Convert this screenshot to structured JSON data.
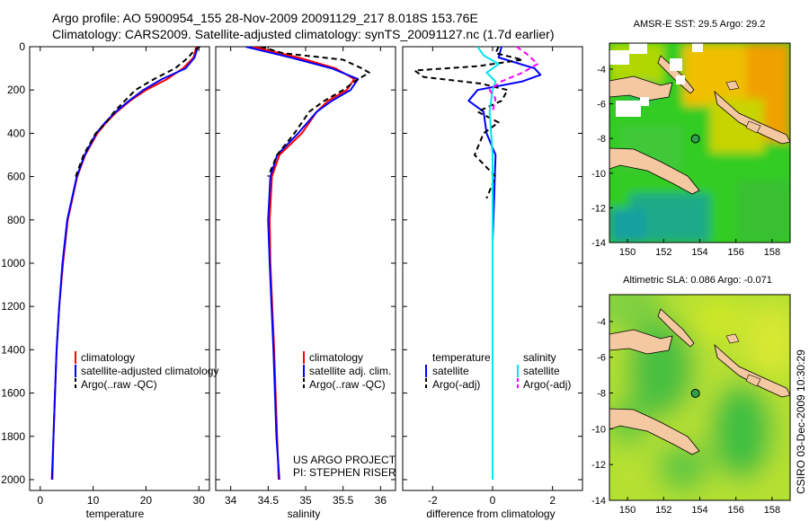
{
  "title": {
    "line1": "Argo profile: AO 5900954_155 28-Nov-2009 20091129_217 8.018S 153.76E",
    "line2": "Climatology: CARS2009. Satellite-adjusted climatology: synTS_20091127.nc (1.7d earlier)"
  },
  "credit": {
    "project": "US ARGO PROJECT",
    "pi": "PI: STEPHEN RISER",
    "stamp": "CSIRO 03-Dec-2009 10:30:29"
  },
  "colors": {
    "clim": "#ff0000",
    "sat": "#0000ff",
    "argo": "#000000",
    "sal_sat": "#00e5ee",
    "sal_argo": "#ff00ff",
    "land": "#f4c8a0"
  },
  "chart_data": [
    {
      "id": "temperature",
      "type": "line",
      "xlabel": "temperature",
      "xlim": [
        -2,
        32
      ],
      "ylim": [
        2050,
        0
      ],
      "xticks": [
        0,
        10,
        20,
        30
      ],
      "yticks": [
        0,
        200,
        400,
        600,
        800,
        1000,
        1200,
        1400,
        1600,
        1800,
        2000
      ],
      "legend": [
        "climatology",
        "satellite-adjusted climatology",
        "Argo(..raw -QC)"
      ],
      "series": [
        {
          "name": "climatology",
          "depth": [
            0,
            50,
            100,
            150,
            200,
            250,
            300,
            350,
            400,
            500,
            600,
            800,
            1000,
            1200,
            1400,
            1600,
            1800,
            2000
          ],
          "values": [
            29.5,
            29.0,
            27.0,
            24.0,
            20.0,
            17.0,
            14.5,
            12.5,
            10.8,
            8.5,
            7.0,
            5.2,
            4.3,
            3.6,
            3.1,
            2.8,
            2.5,
            2.3
          ]
        },
        {
          "name": "satellite-adjusted climatology",
          "depth": [
            0,
            50,
            100,
            150,
            200,
            250,
            300,
            350,
            400,
            500,
            600,
            800,
            1000,
            1200,
            1400,
            1600,
            1800,
            2000
          ],
          "values": [
            29.8,
            29.2,
            27.5,
            23.0,
            19.5,
            16.8,
            14.3,
            12.3,
            10.6,
            8.4,
            6.9,
            5.1,
            4.2,
            3.6,
            3.1,
            2.8,
            2.5,
            2.2
          ]
        },
        {
          "name": "Argo(..raw -QC)",
          "depth": [
            0,
            20,
            50,
            100,
            150,
            200,
            250,
            300,
            350,
            400,
            500,
            600
          ],
          "values": [
            30.2,
            29.0,
            28.0,
            25.5,
            21.5,
            18.0,
            16.0,
            14.0,
            12.5,
            10.5,
            8.2,
            6.7
          ]
        }
      ]
    },
    {
      "id": "salinity",
      "type": "line",
      "xlabel": "salinity",
      "xlim": [
        33.8,
        36.2
      ],
      "ylim": [
        2050,
        0
      ],
      "xticks": [
        34,
        34.5,
        35,
        35.5,
        36
      ],
      "yticks": [
        0,
        200,
        400,
        600,
        800,
        1000,
        1200,
        1400,
        1600,
        1800,
        2000
      ],
      "legend": [
        "climatology",
        "satellite adj. clim.",
        "Argo(..raw -QC)"
      ],
      "series": [
        {
          "name": "climatology",
          "depth": [
            0,
            50,
            100,
            150,
            200,
            250,
            300,
            400,
            500,
            600,
            800,
            1000,
            1400,
            1800,
            2000
          ],
          "values": [
            34.3,
            34.9,
            35.4,
            35.65,
            35.55,
            35.3,
            35.15,
            34.95,
            34.65,
            34.55,
            34.52,
            34.53,
            34.58,
            34.62,
            34.64
          ]
        },
        {
          "name": "satellite adj. clim.",
          "depth": [
            0,
            50,
            100,
            150,
            200,
            250,
            300,
            400,
            500,
            600,
            800,
            1000,
            1400,
            1800,
            2000
          ],
          "values": [
            34.2,
            34.8,
            35.35,
            35.7,
            35.6,
            35.35,
            35.15,
            34.9,
            34.62,
            34.53,
            34.5,
            34.52,
            34.57,
            34.61,
            34.65
          ]
        },
        {
          "name": "Argo(..raw -QC)",
          "depth": [
            0,
            30,
            60,
            100,
            120,
            150,
            200,
            250,
            300,
            400,
            500,
            600
          ],
          "values": [
            34.4,
            34.7,
            35.5,
            35.75,
            35.85,
            35.7,
            35.5,
            35.25,
            35.05,
            34.85,
            34.62,
            34.5
          ]
        }
      ]
    },
    {
      "id": "difference",
      "type": "line",
      "xlabel": "difference from climatology",
      "xlim": [
        -3,
        3
      ],
      "ylim": [
        2050,
        0
      ],
      "xticks": [
        -2,
        0,
        2
      ],
      "yticks": [
        0,
        200,
        400,
        600,
        800,
        1000,
        1200,
        1400,
        1600,
        1800,
        2000
      ],
      "legend": [
        "temperature",
        "satellite",
        "Argo(-adj)",
        "salinity",
        "satellite",
        "Argo(-adj)"
      ],
      "series": [
        {
          "name": "temperature satellite",
          "depth": [
            0,
            50,
            100,
            130,
            160,
            200,
            250,
            300,
            400,
            500,
            700,
            900,
            1200,
            1600,
            2000
          ],
          "values": [
            0.3,
            0.2,
            1.4,
            1.6,
            1.0,
            -0.5,
            -0.8,
            -0.3,
            -0.2,
            0.1,
            0.05,
            0.0,
            0.0,
            0.0,
            0.0
          ]
        },
        {
          "name": "temperature Argo(-adj)",
          "depth": [
            0,
            30,
            60,
            90,
            110,
            140,
            170,
            200,
            250,
            300,
            350,
            400,
            500,
            600,
            700
          ],
          "values": [
            0.2,
            0.1,
            1.0,
            -0.5,
            -2.6,
            -2.3,
            -0.4,
            0.5,
            0.3,
            -0.5,
            0.2,
            -0.3,
            -0.6,
            0.1,
            -0.2
          ]
        },
        {
          "name": "salinity satellite",
          "depth": [
            0,
            40,
            80,
            120,
            160,
            200,
            300,
            500,
            800,
            1200,
            1600,
            2000
          ],
          "values": [
            -0.5,
            -0.3,
            0.2,
            -0.2,
            0.1,
            0.0,
            -0.1,
            0.0,
            0.0,
            0.0,
            0.0,
            0.0
          ]
        },
        {
          "name": "salinity Argo(-adj)",
          "depth": [
            0,
            40,
            80,
            120,
            160,
            200,
            240,
            300
          ],
          "values": [
            0.8,
            1.2,
            1.5,
            1.0,
            0.3,
            -0.1,
            0.1,
            0.0
          ]
        }
      ]
    },
    {
      "id": "sst-map",
      "type": "heatmap",
      "title": "AMSR-E SST: 29.5 Argo: 29.2",
      "xlim": [
        149,
        159
      ],
      "ylim": [
        -14,
        -2.5
      ],
      "xticks": [
        150,
        152,
        154,
        156,
        158
      ],
      "yticks": [
        -4,
        -6,
        -8,
        -10,
        -12,
        -14
      ],
      "float": {
        "lon": 153.76,
        "lat": -8.018
      }
    },
    {
      "id": "sla-map",
      "type": "heatmap",
      "title": "Altimetric SLA: 0.086 Argo: -0.071",
      "xlim": [
        149,
        159
      ],
      "ylim": [
        -14,
        -2.5
      ],
      "xticks": [
        150,
        152,
        154,
        156,
        158
      ],
      "yticks": [
        -4,
        -6,
        -8,
        -10,
        -12,
        -14
      ],
      "float": {
        "lon": 153.76,
        "lat": -8.018
      }
    }
  ]
}
